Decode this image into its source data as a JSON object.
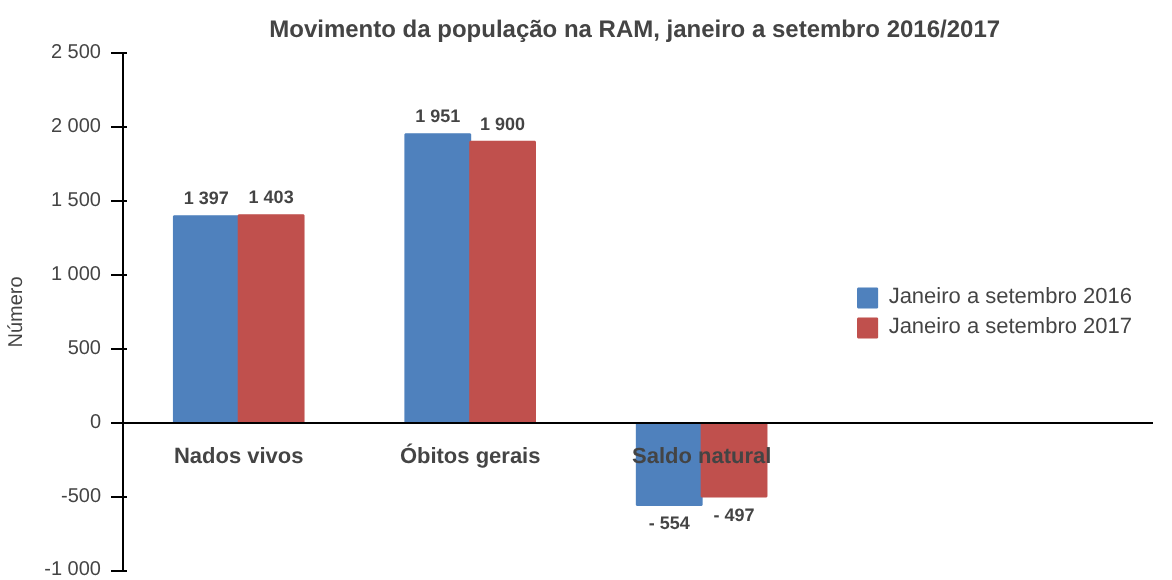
{
  "chart_data": {
    "type": "bar",
    "title": "Movimento da população  na RAM, janeiro a setembro 2016/2017",
    "ylabel": "Número",
    "categories": [
      "Nados vivos",
      "Óbitos gerais",
      "Saldo natural"
    ],
    "series": [
      {
        "name": "Janeiro a setembro 2016",
        "color": "#4f81bd",
        "values": [
          1397,
          1951,
          -554
        ],
        "value_labels": [
          "1 397",
          "1 951",
          "- 554"
        ]
      },
      {
        "name": "Janeiro a setembro 2017",
        "color": "#c0504d",
        "values": [
          1403,
          1900,
          -497
        ],
        "value_labels": [
          "1 403",
          "1 900",
          "- 497"
        ]
      }
    ],
    "ylim": [
      -1000,
      2500
    ],
    "yticks": [
      {
        "value": -1000,
        "label": "-1 000"
      },
      -500,
      0,
      500,
      {
        "value": 1000,
        "label": "1 000"
      },
      {
        "value": 1500,
        "label": "1 500"
      },
      {
        "value": 2000,
        "label": "2 000"
      },
      {
        "value": 2500,
        "label": "2 500"
      }
    ],
    "legend": "right"
  }
}
